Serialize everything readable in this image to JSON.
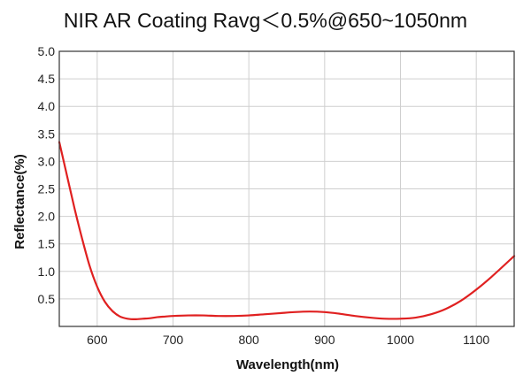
{
  "chart_data": {
    "type": "line",
    "title": "NIR AR Coating Ravg＜0.5%@650~1050nm",
    "xlabel": "Wavelength(nm)",
    "ylabel": "Reflectance(%)",
    "xlim": [
      550,
      1150
    ],
    "ylim": [
      0,
      5.0
    ],
    "xticks": [
      600,
      700,
      800,
      900,
      1000,
      1100
    ],
    "yticks": [
      0.5,
      1.0,
      1.5,
      2.0,
      2.5,
      3.0,
      3.5,
      4.0,
      4.5,
      5.0
    ],
    "grid": true,
    "series": [
      {
        "color": "#e02020",
        "x": [
          550,
          560,
          570,
          580,
          590,
          600,
          610,
          620,
          630,
          640,
          650,
          660,
          670,
          680,
          690,
          700,
          720,
          740,
          760,
          780,
          800,
          820,
          840,
          860,
          880,
          900,
          920,
          940,
          960,
          980,
          1000,
          1020,
          1040,
          1060,
          1080,
          1100,
          1120,
          1150
        ],
        "y": [
          3.35,
          2.75,
          2.15,
          1.6,
          1.1,
          0.72,
          0.45,
          0.28,
          0.18,
          0.14,
          0.13,
          0.14,
          0.15,
          0.17,
          0.18,
          0.19,
          0.2,
          0.2,
          0.19,
          0.19,
          0.2,
          0.22,
          0.24,
          0.26,
          0.27,
          0.26,
          0.23,
          0.19,
          0.16,
          0.14,
          0.14,
          0.16,
          0.22,
          0.32,
          0.47,
          0.67,
          0.9,
          1.28
        ]
      }
    ]
  }
}
